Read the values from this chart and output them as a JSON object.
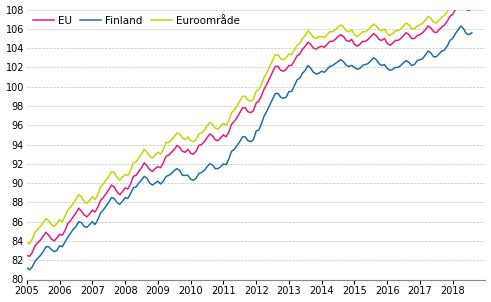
{
  "eu_color": "#e8197c",
  "finland_color": "#1e6eb0",
  "euro_color": "#c8d400",
  "ylim": [
    80,
    108
  ],
  "yticks": [
    80,
    82,
    84,
    86,
    88,
    90,
    92,
    94,
    96,
    98,
    100,
    102,
    104,
    106,
    108
  ],
  "xtick_years": [
    2005,
    2006,
    2007,
    2008,
    2009,
    2010,
    2011,
    2012,
    2013,
    2014,
    2015,
    2016,
    2017,
    2018
  ],
  "legend_labels": [
    "EU",
    "Finland",
    "Euroområde"
  ],
  "grid_color": "#c0c0c0",
  "line_width": 1.1,
  "start_year": 2005,
  "finland": [
    81.2,
    81.0,
    81.3,
    81.9,
    82.2,
    82.5,
    82.9,
    83.4,
    83.4,
    83.1,
    82.9,
    83.0,
    83.5,
    83.4,
    83.9,
    84.4,
    84.8,
    85.2,
    85.5,
    86.0,
    85.9,
    85.5,
    85.4,
    85.7,
    86.0,
    85.7,
    86.2,
    86.9,
    87.2,
    87.6,
    88.0,
    88.5,
    88.4,
    88.0,
    87.8,
    88.1,
    88.5,
    88.4,
    88.9,
    89.5,
    89.6,
    90.0,
    90.3,
    90.7,
    90.5,
    90.0,
    89.8,
    90.0,
    90.2,
    89.9,
    90.2,
    90.7,
    90.8,
    91.0,
    91.3,
    91.5,
    91.3,
    90.8,
    90.8,
    90.8,
    90.4,
    90.3,
    90.5,
    91.0,
    91.1,
    91.3,
    91.7,
    92.0,
    91.9,
    91.5,
    91.5,
    91.7,
    92.0,
    91.9,
    92.5,
    93.3,
    93.5,
    93.9,
    94.3,
    94.8,
    94.8,
    94.4,
    94.3,
    94.5,
    95.4,
    95.5,
    96.2,
    97.0,
    97.5,
    98.1,
    98.7,
    99.3,
    99.3,
    98.9,
    98.8,
    98.9,
    99.5,
    99.5,
    100.1,
    100.7,
    100.9,
    101.4,
    101.7,
    102.2,
    101.9,
    101.5,
    101.3,
    101.4,
    101.6,
    101.5,
    101.8,
    102.1,
    102.2,
    102.4,
    102.6,
    102.8,
    102.6,
    102.2,
    102.1,
    102.2,
    102.0,
    101.8,
    101.9,
    102.2,
    102.3,
    102.4,
    102.7,
    103.0,
    102.8,
    102.4,
    102.2,
    102.3,
    101.9,
    101.7,
    101.8,
    102.0,
    102.0,
    102.2,
    102.5,
    102.7,
    102.5,
    102.2,
    102.3,
    102.7,
    102.8,
    102.9,
    103.3,
    103.7,
    103.5,
    103.1,
    103.1,
    103.4,
    103.7,
    103.8,
    104.2,
    104.8,
    105.0,
    105.5,
    105.9,
    106.3,
    106.0,
    105.5,
    105.4,
    105.6
  ],
  "eu": [
    82.5,
    82.4,
    82.8,
    83.5,
    83.8,
    84.1,
    84.5,
    84.9,
    84.6,
    84.2,
    84.0,
    84.3,
    84.7,
    84.6,
    85.1,
    85.8,
    86.1,
    86.5,
    86.9,
    87.4,
    87.1,
    86.7,
    86.5,
    86.8,
    87.2,
    87.0,
    87.5,
    88.2,
    88.5,
    88.9,
    89.3,
    89.8,
    89.6,
    89.1,
    88.8,
    89.1,
    89.5,
    89.4,
    89.9,
    90.7,
    90.8,
    91.2,
    91.6,
    92.1,
    91.8,
    91.4,
    91.2,
    91.5,
    91.7,
    91.6,
    92.1,
    92.8,
    92.9,
    93.2,
    93.5,
    93.9,
    93.7,
    93.3,
    93.2,
    93.5,
    93.1,
    93.0,
    93.3,
    93.9,
    94.0,
    94.3,
    94.7,
    95.1,
    94.9,
    94.5,
    94.4,
    94.7,
    95.0,
    94.8,
    95.3,
    96.1,
    96.4,
    96.8,
    97.3,
    97.8,
    97.8,
    97.4,
    97.3,
    97.5,
    98.3,
    98.5,
    99.1,
    99.8,
    100.3,
    100.9,
    101.5,
    102.1,
    102.1,
    101.7,
    101.6,
    101.8,
    102.2,
    102.2,
    102.7,
    103.2,
    103.4,
    103.9,
    104.2,
    104.6,
    104.4,
    104.0,
    103.9,
    104.1,
    104.2,
    104.1,
    104.4,
    104.7,
    104.7,
    104.9,
    105.2,
    105.4,
    105.2,
    104.8,
    104.7,
    104.9,
    104.4,
    104.2,
    104.4,
    104.7,
    104.7,
    104.9,
    105.2,
    105.5,
    105.3,
    104.9,
    104.8,
    105.0,
    104.5,
    104.3,
    104.5,
    104.8,
    104.8,
    105.0,
    105.3,
    105.6,
    105.4,
    105.0,
    105.0,
    105.3,
    105.4,
    105.6,
    105.9,
    106.3,
    106.1,
    105.7,
    105.6,
    105.9,
    106.2,
    106.4,
    106.8,
    107.3,
    107.5,
    108.0,
    108.4,
    108.7,
    108.4,
    108.0,
    107.9,
    108.1
  ],
  "euro": [
    83.8,
    83.7,
    84.2,
    84.9,
    85.2,
    85.5,
    85.9,
    86.3,
    86.1,
    85.7,
    85.5,
    85.8,
    86.2,
    86.0,
    86.6,
    87.2,
    87.5,
    87.9,
    88.3,
    88.8,
    88.6,
    88.1,
    87.9,
    88.2,
    88.6,
    88.3,
    88.8,
    89.6,
    89.9,
    90.3,
    90.7,
    91.2,
    91.1,
    90.6,
    90.3,
    90.6,
    90.9,
    90.8,
    91.3,
    92.1,
    92.2,
    92.6,
    93.0,
    93.5,
    93.2,
    92.8,
    92.6,
    92.9,
    93.2,
    93.0,
    93.5,
    94.2,
    94.2,
    94.5,
    94.8,
    95.2,
    95.1,
    94.7,
    94.5,
    94.8,
    94.4,
    94.3,
    94.5,
    95.1,
    95.2,
    95.5,
    95.9,
    96.3,
    96.1,
    95.7,
    95.6,
    95.9,
    96.2,
    96.0,
    96.5,
    97.3,
    97.6,
    98.0,
    98.5,
    99.0,
    99.0,
    98.6,
    98.5,
    98.7,
    99.5,
    99.7,
    100.3,
    101.0,
    101.5,
    102.1,
    102.7,
    103.3,
    103.3,
    102.9,
    102.8,
    103.0,
    103.4,
    103.3,
    103.8,
    104.3,
    104.5,
    105.0,
    105.3,
    105.8,
    105.5,
    105.1,
    105.0,
    105.2,
    105.2,
    105.1,
    105.4,
    105.7,
    105.7,
    105.9,
    106.2,
    106.4,
    106.2,
    105.8,
    105.7,
    105.9,
    105.4,
    105.2,
    105.4,
    105.7,
    105.7,
    105.9,
    106.2,
    106.5,
    106.3,
    105.9,
    105.8,
    106.0,
    105.5,
    105.3,
    105.5,
    105.8,
    105.8,
    106.0,
    106.3,
    106.6,
    106.4,
    106.0,
    106.0,
    106.3,
    106.4,
    106.6,
    106.9,
    107.3,
    107.1,
    106.7,
    106.6,
    106.9,
    107.2,
    107.4,
    107.8,
    108.3,
    108.5,
    109.0,
    109.4,
    109.7,
    109.4,
    109.0,
    108.9,
    109.1
  ]
}
